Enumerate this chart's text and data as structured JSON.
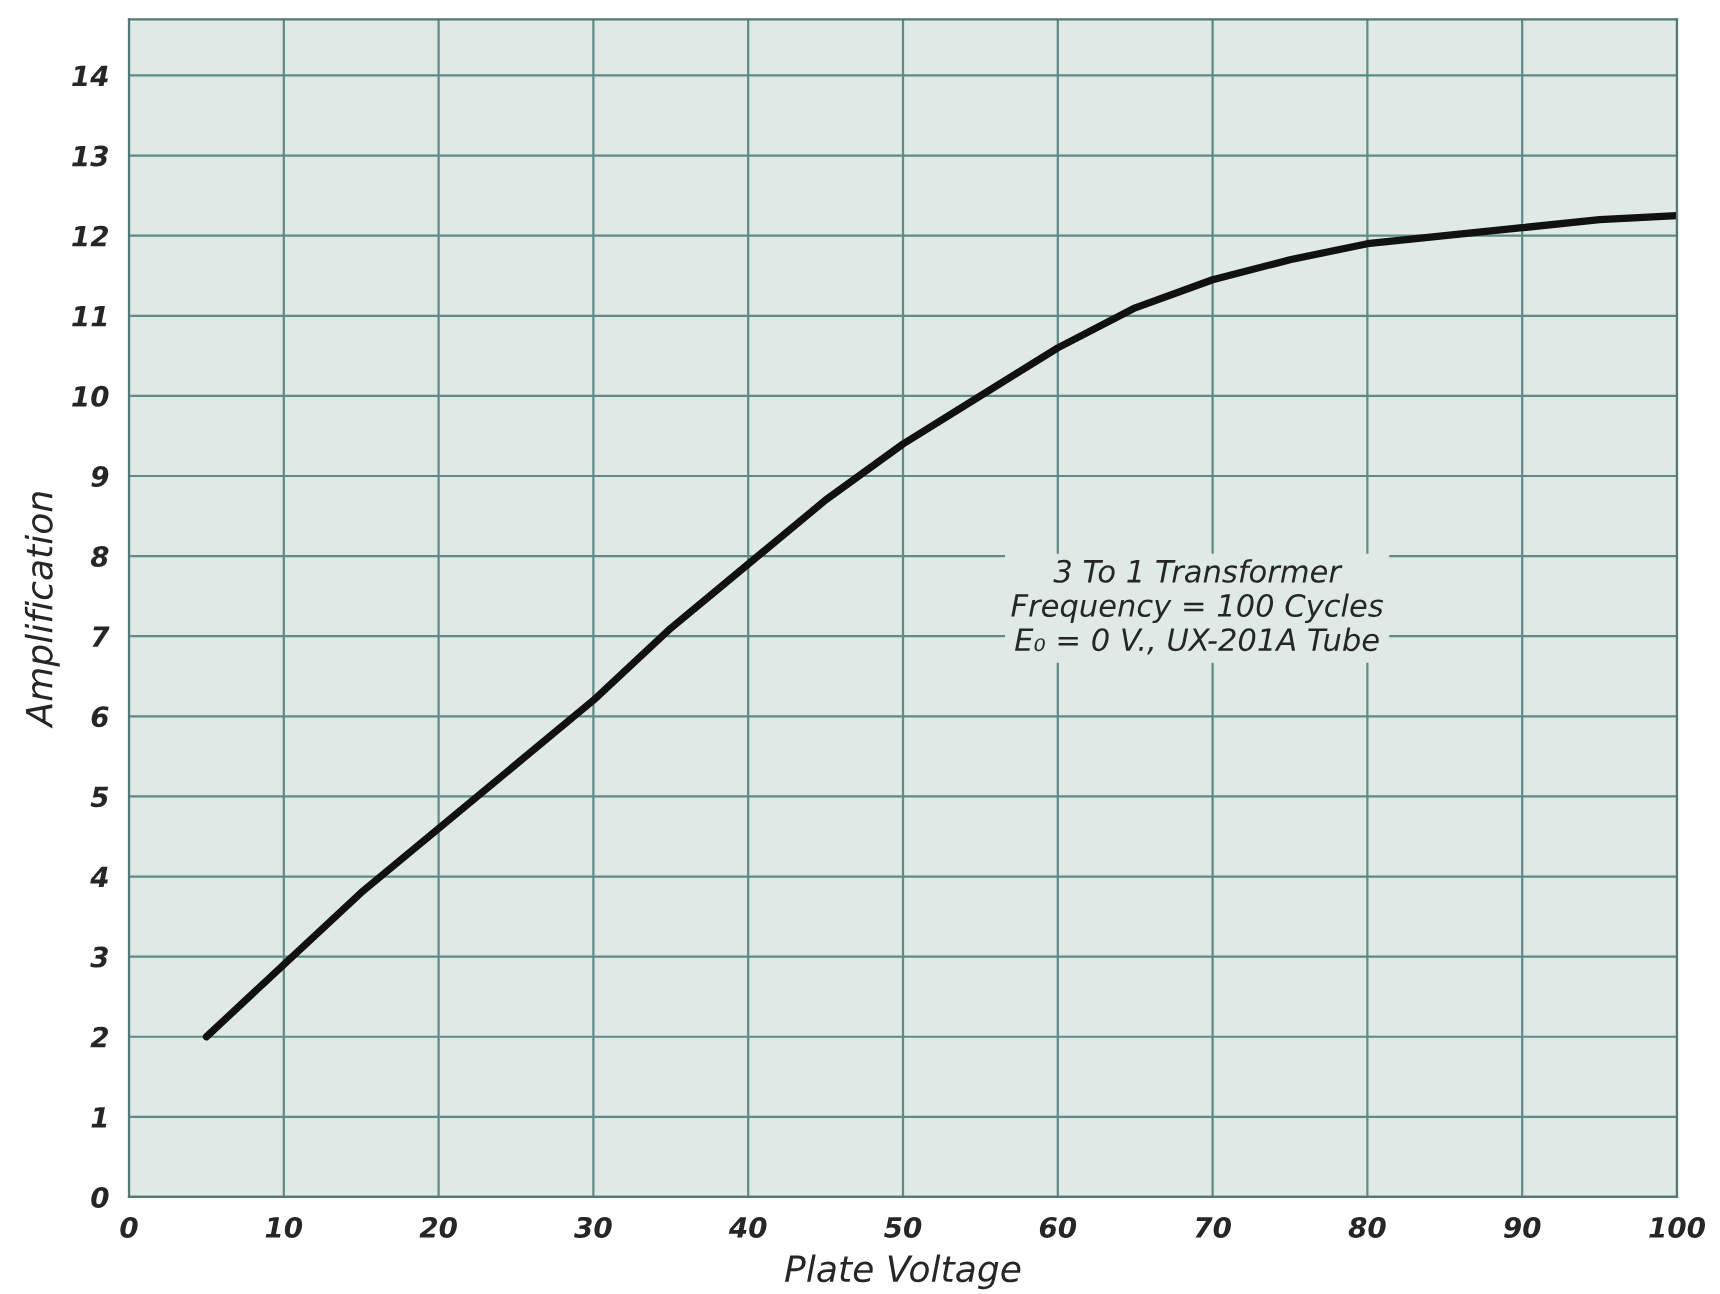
{
  "chart_data": {
    "type": "line",
    "xlabel": "Plate Voltage",
    "ylabel": "Amplification",
    "x": [
      5,
      10,
      15,
      20,
      25,
      30,
      35,
      40,
      45,
      50,
      55,
      60,
      65,
      70,
      75,
      80,
      85,
      90,
      95,
      100
    ],
    "series": [
      {
        "color": "#111111",
        "values": [
          2.0,
          2.9,
          3.8,
          4.6,
          5.4,
          6.2,
          7.1,
          7.9,
          8.7,
          9.4,
          10.0,
          10.6,
          11.1,
          11.45,
          11.7,
          11.9,
          12.0,
          12.1,
          12.2,
          12.25
        ]
      }
    ],
    "xlim": [
      0,
      100
    ],
    "ylim": [
      0,
      14.7
    ],
    "xticks": [
      0,
      10,
      20,
      30,
      40,
      50,
      60,
      70,
      80,
      90,
      100
    ],
    "yticks": [
      0,
      1,
      2,
      3,
      4,
      5,
      6,
      7,
      8,
      9,
      10,
      11,
      12,
      13,
      14
    ],
    "grid": true,
    "marker": "none",
    "line_style": "solid",
    "annotations": [
      "3 To 1 Transformer\nFrequency = 100 Cycles\nE₀ = 0 V., UX-201A Tube"
    ]
  }
}
